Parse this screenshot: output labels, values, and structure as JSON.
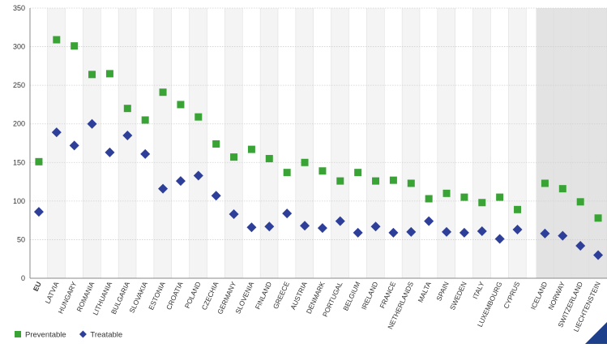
{
  "chart_data": {
    "type": "scatter",
    "title": "",
    "xlabel": "",
    "ylabel": "",
    "ylim": [
      0,
      350
    ],
    "yticks": [
      0,
      50,
      100,
      150,
      200,
      250,
      300,
      350
    ],
    "grid": true,
    "legend_position": "bottom-left",
    "categories": [
      "EU",
      "LATVIA",
      "HUNGARY",
      "ROMANIA",
      "LITHUANIA",
      "BULGARIA",
      "SLOVAKIA",
      "ESTONIA",
      "CROATIA",
      "POLAND",
      "CZECHIA",
      "GERMANY",
      "SLOVENIA",
      "FINLAND",
      "GREECE",
      "AUSTRIA",
      "DENMARK",
      "PORTUGAL",
      "BELGIUM",
      "IRELAND",
      "FRANCE",
      "NETHERLANDS",
      "MALTA",
      "SPAIN",
      "SWEDEN",
      "ITALY",
      "LUXEMBOURG",
      "CYPRUS",
      "ICELAND",
      "NORWAY",
      "SWITZERLAND",
      "LIECHTENSTEIN"
    ],
    "series": [
      {
        "name": "Preventable",
        "color": "#3aa335",
        "marker": "square",
        "values": [
          151,
          309,
          301,
          264,
          265,
          220,
          205,
          241,
          225,
          209,
          174,
          157,
          167,
          155,
          137,
          150,
          139,
          126,
          137,
          126,
          127,
          123,
          103,
          110,
          105,
          98,
          105,
          89,
          123,
          116,
          99,
          78
        ]
      },
      {
        "name": "Treatable",
        "color": "#2e3f9a",
        "marker": "diamond",
        "values": [
          86,
          189,
          172,
          200,
          163,
          185,
          161,
          116,
          126,
          133,
          107,
          83,
          66,
          67,
          84,
          68,
          65,
          74,
          59,
          67,
          59,
          60,
          74,
          60,
          59,
          61,
          51,
          63,
          58,
          55,
          42,
          30
        ]
      }
    ],
    "shaded_categories": [
      "ICELAND",
      "NORWAY",
      "SWITZERLAND",
      "LIECHTENSTEIN"
    ]
  }
}
